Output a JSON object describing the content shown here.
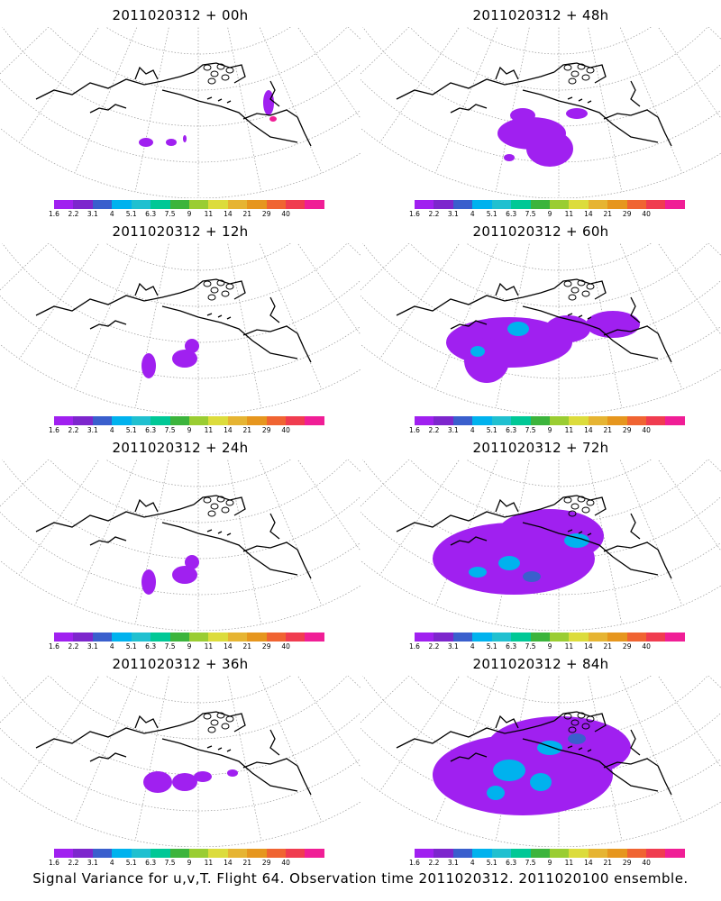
{
  "colorbar": {
    "colors": [
      "#a020f0",
      "#7d26cd",
      "#3a5fcd",
      "#00b2ee",
      "#20c0d0",
      "#00c896",
      "#3cb43c",
      "#9acd32",
      "#dcdc3c",
      "#e6b432",
      "#e6961e",
      "#f06432",
      "#f03c50",
      "#f01e96"
    ],
    "labels": [
      "1.6",
      "2.2",
      "3.1",
      "4",
      "5.1",
      "6.3",
      "7.5",
      "9",
      "11",
      "14",
      "21",
      "29",
      "40"
    ]
  },
  "panels": [
    {
      "title": "2011020312 + 00h",
      "intensity": 0
    },
    {
      "title": "2011020312 + 48h",
      "intensity": 3
    },
    {
      "title": "2011020312 + 12h",
      "intensity": 1
    },
    {
      "title": "2011020312 + 60h",
      "intensity": 4
    },
    {
      "title": "2011020312 + 24h",
      "intensity": 1
    },
    {
      "title": "2011020312 + 72h",
      "intensity": 5
    },
    {
      "title": "2011020312 + 36h",
      "intensity": 2
    },
    {
      "title": "2011020312 + 84h",
      "intensity": 6
    }
  ],
  "caption": "Signal Variance for u,v,T. Flight 64. Observation time 2011020312. 2011020100 ensemble."
}
